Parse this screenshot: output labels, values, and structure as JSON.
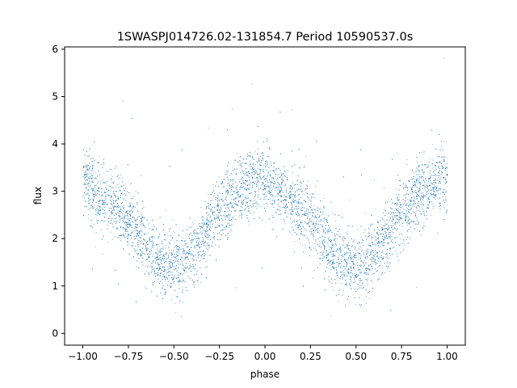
{
  "chart_data": {
    "type": "scatter",
    "title": "1SWASPJ014726.02-131854.7 Period 10590537.0s",
    "xlabel": "phase",
    "ylabel": "flux",
    "xlim": [
      -1.1,
      1.1
    ],
    "ylim": [
      -0.25,
      6.05
    ],
    "xticks": [
      -1.0,
      -0.75,
      -0.5,
      -0.25,
      0.0,
      0.25,
      0.5,
      0.75,
      1.0
    ],
    "xtick_labels": [
      "−1.00",
      "−0.75",
      "−0.50",
      "−0.25",
      "0.00",
      "0.25",
      "0.50",
      "0.75",
      "1.00"
    ],
    "yticks": [
      0,
      1,
      2,
      3,
      4,
      5,
      6
    ],
    "ytick_labels": [
      "0",
      "1",
      "2",
      "3",
      "4",
      "5",
      "6"
    ],
    "grid": false,
    "legend": "none",
    "marker_color": "#1f77b4",
    "x_range": [
      -1.0,
      1.0
    ],
    "phase_profile": {
      "phase": [
        0.0,
        0.05,
        0.1,
        0.15,
        0.2,
        0.25,
        0.3,
        0.35,
        0.4,
        0.45,
        0.5,
        0.55,
        0.6,
        0.65,
        0.7,
        0.75,
        0.8,
        0.85,
        0.9,
        0.95,
        1.0
      ],
      "flux": [
        3.3,
        3.05,
        2.9,
        2.75,
        2.6,
        2.4,
        2.15,
        1.85,
        1.6,
        1.5,
        1.45,
        1.5,
        1.7,
        1.95,
        2.3,
        2.55,
        2.75,
        2.95,
        3.1,
        3.25,
        3.3
      ]
    },
    "scatter_spread": 0.35,
    "n_points": 9000
  }
}
